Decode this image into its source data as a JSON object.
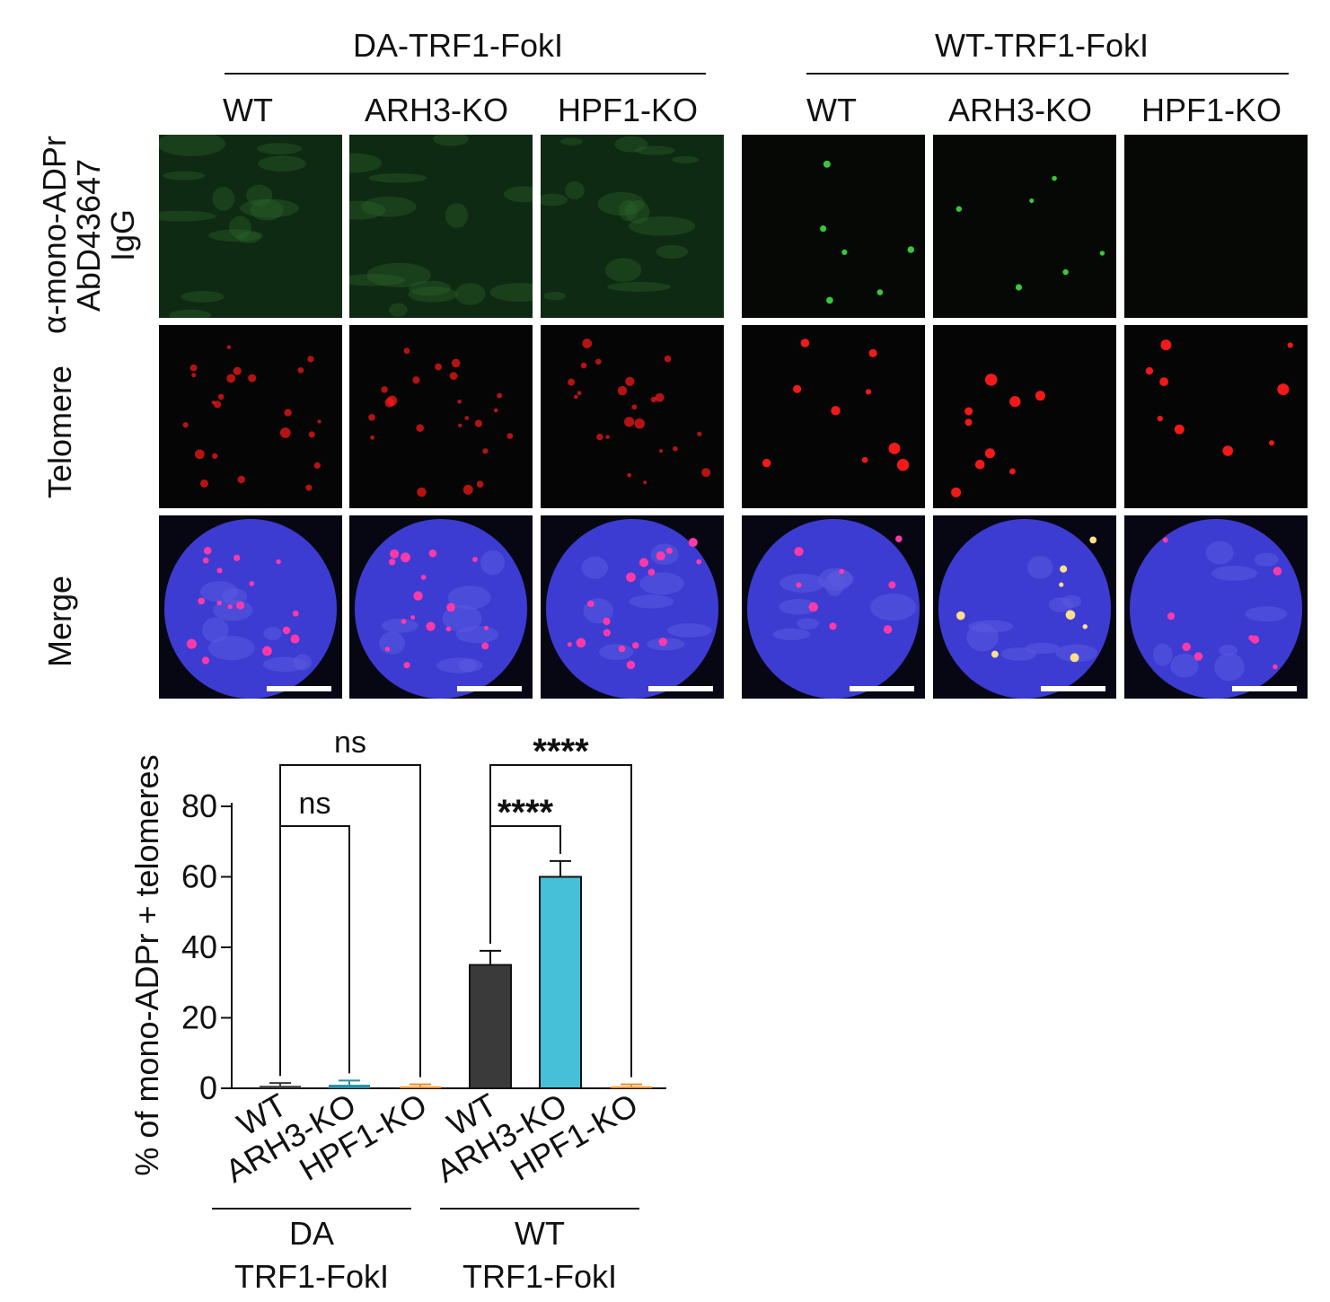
{
  "figure": {
    "group_titles": [
      "DA-TRF1-FokI",
      "WT-TRF1-FokI"
    ],
    "column_labels": [
      "WT",
      "ARH3-KO",
      "HPF1-KO",
      "WT",
      "ARH3-KO",
      "HPF1-KO"
    ],
    "row_labels": {
      "row1_line1": "α-mono-ADPr",
      "row1_line2": "AbD43647",
      "row1_line3": "IgG",
      "row2": "Telomere",
      "row3": "Merge"
    },
    "channel_colors": {
      "green": "#37c83a",
      "red": "#ff1a1a",
      "blue": "#3c3cd2"
    }
  },
  "chart_data": {
    "type": "bar",
    "categories": [
      "WT",
      "ARH3-KO",
      "HPF1-KO",
      "WT",
      "ARH3-KO",
      "HPF1-KO"
    ],
    "values": [
      0.7,
      1.0,
      0.5,
      35,
      60,
      0.5
    ],
    "errors": [
      0.8,
      1.2,
      0.6,
      4,
      4.5,
      0.6
    ],
    "bar_colors": [
      "#3a3a3a",
      "#2a8fa3",
      "#f08a2a",
      "#3a3a3a",
      "#45c0d8",
      "#f08a2a"
    ],
    "ylabel": "% of mono-ADPr + telomeres",
    "ylim": [
      0,
      80
    ],
    "yticks": [
      0,
      20,
      40,
      60,
      80
    ],
    "group_labels": [
      {
        "line1": "DA",
        "line2": "TRF1-FokI"
      },
      {
        "line1": "WT",
        "line2": "TRF1-FokI"
      }
    ],
    "comparisons": [
      {
        "from": 0,
        "to": 1,
        "label": "ns"
      },
      {
        "from": 0,
        "to": 2,
        "label": "ns"
      },
      {
        "from": 3,
        "to": 4,
        "label": "****"
      },
      {
        "from": 3,
        "to": 5,
        "label": "****"
      }
    ]
  }
}
